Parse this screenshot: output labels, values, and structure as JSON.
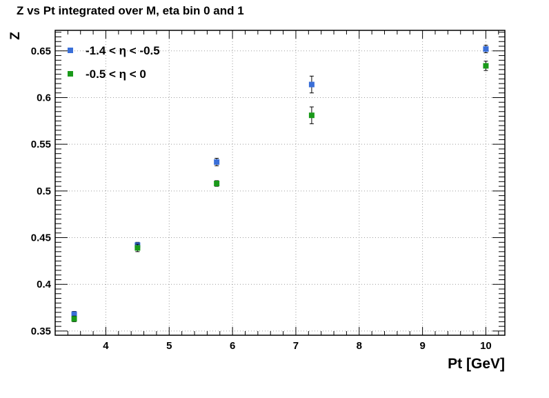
{
  "chart_data": {
    "type": "scatter",
    "title": "Z vs Pt integrated over M, eta bin 0 and 1",
    "xlabel": "Pt [GeV]",
    "ylabel": "Z",
    "xlim": [
      3.2,
      10.3
    ],
    "ylim": [
      0.3455,
      0.672
    ],
    "x_ticks": [
      4,
      5,
      6,
      7,
      8,
      9,
      10
    ],
    "x_tick_labels": [
      "4",
      "5",
      "6",
      "7",
      "8",
      "9",
      "10"
    ],
    "y_ticks": [
      0.35,
      0.4,
      0.45,
      0.5,
      0.55,
      0.6,
      0.65
    ],
    "y_tick_labels": [
      "0.35",
      "0.4",
      "0.45",
      "0.5",
      "0.55",
      "0.6",
      "0.65"
    ],
    "grid": true,
    "legend_position": "top-left",
    "series": [
      {
        "name": "-1.4 < η < -0.5",
        "color": "#3a6fd8",
        "marker": "square",
        "points": [
          {
            "x": 3.5,
            "y": 0.368,
            "err": 0.003
          },
          {
            "x": 4.5,
            "y": 0.442,
            "err": 0.003
          },
          {
            "x": 5.75,
            "y": 0.531,
            "err": 0.004
          },
          {
            "x": 7.25,
            "y": 0.614,
            "err": 0.009
          },
          {
            "x": 10.0,
            "y": 0.652,
            "err": 0.004
          }
        ]
      },
      {
        "name": "-0.5 < η < 0",
        "color": "#1a9a1a",
        "marker": "square",
        "points": [
          {
            "x": 3.5,
            "y": 0.363,
            "err": 0.003
          },
          {
            "x": 4.5,
            "y": 0.439,
            "err": 0.004
          },
          {
            "x": 5.75,
            "y": 0.508,
            "err": 0.003
          },
          {
            "x": 7.25,
            "y": 0.581,
            "err": 0.009
          },
          {
            "x": 10.0,
            "y": 0.634,
            "err": 0.005
          }
        ]
      }
    ]
  }
}
